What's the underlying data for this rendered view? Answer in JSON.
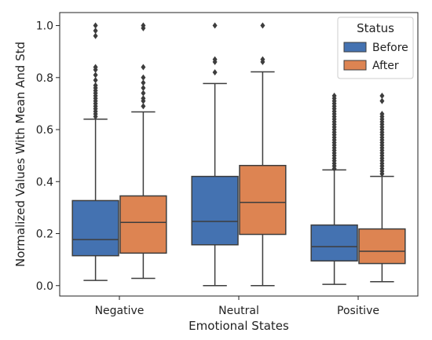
{
  "chart_data": {
    "type": "box",
    "categories": [
      "Negative",
      "Neutral",
      "Positive"
    ],
    "xlabel": "Emotional States",
    "ylabel": "Normalized Values With Mean And Std",
    "ylim": [
      -0.04,
      1.05
    ],
    "yticks": [
      0.0,
      0.2,
      0.4,
      0.6,
      0.8,
      1.0
    ],
    "ytick_labels": [
      "0.0",
      "0.2",
      "0.4",
      "0.6",
      "0.8",
      "1.0"
    ],
    "grid": false,
    "legend": {
      "title": "Status",
      "placement": "top-right"
    },
    "series": [
      {
        "name": "Before",
        "color": "#4472b1",
        "boxes": [
          {
            "whislo": 0.02,
            "q1": 0.115,
            "median": 0.177,
            "q3": 0.327,
            "whishi": 0.64,
            "fliers": [
              0.65,
              0.66,
              0.67,
              0.68,
              0.69,
              0.7,
              0.71,
              0.72,
              0.73,
              0.74,
              0.75,
              0.76,
              0.77,
              0.79,
              0.81,
              0.83,
              0.84,
              0.96,
              0.98,
              1.0
            ]
          },
          {
            "whislo": 0.0,
            "q1": 0.157,
            "median": 0.247,
            "q3": 0.42,
            "whishi": 0.777,
            "fliers": [
              0.82,
              0.86,
              0.87,
              1.0
            ]
          },
          {
            "whislo": 0.005,
            "q1": 0.095,
            "median": 0.15,
            "q3": 0.233,
            "whishi": 0.445,
            "fliers": [
              0.45,
              0.46,
              0.47,
              0.48,
              0.49,
              0.5,
              0.51,
              0.52,
              0.53,
              0.54,
              0.55,
              0.56,
              0.57,
              0.58,
              0.59,
              0.6,
              0.61,
              0.62,
              0.63,
              0.64,
              0.65,
              0.66,
              0.67,
              0.68,
              0.69,
              0.7,
              0.71,
              0.72,
              0.73
            ]
          }
        ]
      },
      {
        "name": "After",
        "color": "#dd8452",
        "boxes": [
          {
            "whislo": 0.028,
            "q1": 0.125,
            "median": 0.243,
            "q3": 0.345,
            "whishi": 0.668,
            "fliers": [
              0.69,
              0.71,
              0.72,
              0.74,
              0.76,
              0.78,
              0.8,
              0.84,
              0.99,
              1.0
            ]
          },
          {
            "whislo": 0.0,
            "q1": 0.197,
            "median": 0.32,
            "q3": 0.462,
            "whishi": 0.822,
            "fliers": [
              0.86,
              0.87,
              1.0
            ]
          },
          {
            "whislo": 0.015,
            "q1": 0.085,
            "median": 0.132,
            "q3": 0.218,
            "whishi": 0.42,
            "fliers": [
              0.43,
              0.44,
              0.45,
              0.46,
              0.47,
              0.48,
              0.49,
              0.5,
              0.51,
              0.52,
              0.53,
              0.54,
              0.55,
              0.56,
              0.57,
              0.58,
              0.59,
              0.6,
              0.61,
              0.62,
              0.63,
              0.64,
              0.65,
              0.66,
              0.71,
              0.73
            ]
          }
        ]
      }
    ]
  }
}
